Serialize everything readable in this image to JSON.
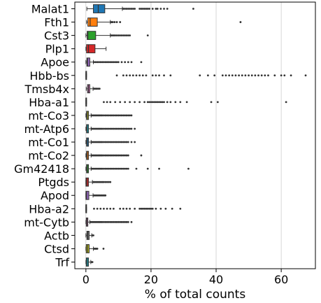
{
  "chart_data": {
    "type": "boxplot",
    "title": "",
    "xlabel": "% of total counts",
    "ylabel": "",
    "xlim": [
      -3.4,
      70.5
    ],
    "xticks": [
      0,
      20,
      40,
      60
    ],
    "grid": "vertical",
    "orientation": "horizontal",
    "series": [
      {
        "name": "Malat1",
        "color": "#1f77b4",
        "q1": 2.3,
        "median": 3.8,
        "q3": 5.8,
        "whisker_low": 0.3,
        "whisker_high": 11.2,
        "outliers": [
          11.5,
          12.0,
          12.5,
          13.0,
          13.5,
          14.0,
          14.5,
          15.0,
          16.5,
          17.0,
          17.5,
          18.0,
          18.5,
          19.0,
          19.5,
          20.5,
          21.5,
          22.0,
          23.0,
          24.0,
          25.0,
          33.0
        ]
      },
      {
        "name": "Fth1",
        "color": "#ff7f0e",
        "q1": 0.6,
        "median": 1.3,
        "q3": 3.5,
        "whisker_low": 0.2,
        "whisker_high": 7.5,
        "outliers": [
          7.8,
          8.2,
          8.8,
          9.5,
          10.5,
          47.5
        ]
      },
      {
        "name": "Cst3",
        "color": "#2ca02c",
        "q1": 0.4,
        "median": 0.6,
        "q3": 3.0,
        "whisker_low": 0.0,
        "whisker_high": 7.5,
        "outliers": [
          7.8,
          8.2,
          8.6,
          9.0,
          9.5,
          10.0,
          10.5,
          11.0,
          11.5,
          12.0,
          12.5,
          13.0,
          13.5,
          19.0
        ]
      },
      {
        "name": "Plp1",
        "color": "#d62728",
        "q1": 0.2,
        "median": 0.8,
        "q3": 2.8,
        "whisker_low": 0.0,
        "whisker_high": 6.2,
        "outliers": []
      },
      {
        "name": "Apoe",
        "color": "#9467bd",
        "q1": 0.3,
        "median": 0.5,
        "q3": 1.2,
        "whisker_low": 0.0,
        "whisker_high": 2.3,
        "outliers": [
          2.5,
          3.0,
          3.5,
          4.0,
          4.5,
          5.0,
          5.5,
          6.0,
          6.5,
          7.0,
          7.5,
          8.0,
          8.5,
          9.0,
          9.5,
          10.0,
          11.0,
          12.0,
          13.0,
          14.0,
          17.0
        ]
      },
      {
        "name": "Hbb-bs",
        "color": "#8c564b",
        "q1": 0.0,
        "median": 0.0,
        "q3": 0.1,
        "whisker_low": 0.0,
        "whisker_high": 0.2,
        "outliers": [
          9.5,
          11.5,
          12.5,
          13.5,
          14.5,
          15.5,
          16.5,
          17.5,
          18.5,
          20.5,
          21.5,
          22.5,
          24.0,
          26.0,
          35.0,
          37.5,
          39.5,
          42.0,
          43.0,
          44.0,
          45.0,
          46.0,
          47.0,
          48.0,
          49.0,
          50.0,
          51.0,
          52.0,
          53.0,
          54.0,
          55.0,
          56.0,
          58.0,
          60.0,
          61.0,
          63.0,
          67.5
        ]
      },
      {
        "name": "Tmsb4x",
        "color": "#e377c2",
        "q1": 0.5,
        "median": 0.8,
        "q3": 1.2,
        "whisker_low": 0.1,
        "whisker_high": 2.2,
        "outliers": [
          2.5,
          2.8,
          3.1,
          3.4,
          3.8,
          4.2
        ]
      },
      {
        "name": "Hba-a1",
        "color": "#7f7f7f",
        "q1": 0.0,
        "median": 0.0,
        "q3": 0.1,
        "whisker_low": 0.0,
        "whisker_high": 0.2,
        "outliers": [
          5.5,
          6.5,
          7.5,
          9.0,
          10.5,
          12.0,
          13.5,
          15.0,
          16.5,
          18.0,
          19.0,
          19.5,
          20.0,
          20.5,
          21.0,
          21.5,
          22.0,
          22.5,
          23.0,
          23.5,
          24.0,
          25.0,
          26.0,
          27.5,
          29.0,
          31.0,
          38.5,
          40.5,
          61.5
        ]
      },
      {
        "name": "mt-Co3",
        "color": "#bcbd22",
        "q1": 0.2,
        "median": 0.4,
        "q3": 0.8,
        "whisker_low": 0.0,
        "whisker_high": 1.6,
        "outliers": [
          1.8,
          2.2,
          2.6,
          3.0,
          3.4,
          3.8,
          4.2,
          4.6,
          5.0,
          5.5,
          6.0,
          6.5,
          7.0,
          7.5,
          8.0,
          8.5,
          9.0,
          9.5,
          10.0,
          10.5,
          11.0,
          11.5,
          12.0,
          12.5,
          13.0,
          13.5,
          14.0
        ]
      },
      {
        "name": "mt-Atp6",
        "color": "#17becf",
        "q1": 0.2,
        "median": 0.4,
        "q3": 0.8,
        "whisker_low": 0.0,
        "whisker_high": 1.6,
        "outliers": [
          1.8,
          2.2,
          2.6,
          3.0,
          3.4,
          3.8,
          4.2,
          4.6,
          5.0,
          5.5,
          6.0,
          6.5,
          7.0,
          7.5,
          8.0,
          8.5,
          9.0,
          9.5,
          10.0,
          10.5,
          11.0,
          11.5,
          12.0,
          12.5,
          13.0,
          13.5,
          14.0,
          15.0
        ]
      },
      {
        "name": "mt-Co1",
        "color": "#1f77b4",
        "q1": 0.2,
        "median": 0.4,
        "q3": 0.8,
        "whisker_low": 0.0,
        "whisker_high": 1.6,
        "outliers": [
          1.8,
          2.2,
          2.6,
          3.0,
          3.4,
          3.8,
          4.2,
          4.6,
          5.0,
          5.5,
          6.0,
          6.5,
          7.0,
          7.5,
          8.0,
          8.5,
          9.0,
          9.5,
          10.0,
          10.5,
          11.0,
          11.5,
          12.0,
          12.5,
          13.0,
          14.0,
          15.0
        ]
      },
      {
        "name": "mt-Co2",
        "color": "#ff7f0e",
        "q1": 0.2,
        "median": 0.4,
        "q3": 0.8,
        "whisker_low": 0.0,
        "whisker_high": 1.6,
        "outliers": [
          1.8,
          2.2,
          2.6,
          3.0,
          3.4,
          3.8,
          4.2,
          4.6,
          5.0,
          5.5,
          6.0,
          6.5,
          7.0,
          7.5,
          8.0,
          8.5,
          9.0,
          9.5,
          10.0,
          10.5,
          11.0,
          11.5,
          12.0,
          12.5,
          13.0,
          17.0
        ]
      },
      {
        "name": "Gm42418",
        "color": "#2ca02c",
        "q1": 0.2,
        "median": 0.4,
        "q3": 0.8,
        "whisker_low": 0.0,
        "whisker_high": 1.6,
        "outliers": [
          1.8,
          2.2,
          2.6,
          3.0,
          3.4,
          3.8,
          4.2,
          4.6,
          5.0,
          5.5,
          6.0,
          6.5,
          7.0,
          7.5,
          8.0,
          8.5,
          9.0,
          9.5,
          10.0,
          10.5,
          11.0,
          11.5,
          12.0,
          12.5,
          13.0,
          15.5,
          19.0,
          22.5,
          31.5
        ]
      },
      {
        "name": "Ptgds",
        "color": "#d62728",
        "q1": 0.0,
        "median": 0.3,
        "q3": 0.8,
        "whisker_low": 0.0,
        "whisker_high": 2.0,
        "outliers": [
          2.3,
          2.7,
          3.1,
          3.5,
          3.9,
          4.3,
          4.7,
          5.1,
          5.5,
          6.0,
          6.5,
          7.0,
          7.5
        ]
      },
      {
        "name": "Apod",
        "color": "#9467bd",
        "q1": 0.0,
        "median": 0.2,
        "q3": 0.9,
        "whisker_low": 0.0,
        "whisker_high": 2.2,
        "outliers": [
          2.5,
          2.8,
          3.1,
          3.4,
          3.7,
          4.0,
          4.3,
          4.6,
          4.9,
          5.2,
          5.5,
          5.8,
          6.0
        ]
      },
      {
        "name": "Hba-a2",
        "color": "#8c564b",
        "q1": 0.0,
        "median": 0.0,
        "q3": 0.1,
        "whisker_low": 0.0,
        "whisker_high": 0.2,
        "outliers": [
          2.5,
          3.5,
          4.5,
          5.5,
          6.5,
          7.5,
          8.5,
          10.5,
          11.5,
          12.5,
          13.5,
          15.0,
          16.5,
          17.0,
          17.5,
          18.0,
          18.5,
          19.0,
          19.5,
          20.0,
          20.5,
          21.5,
          23.0,
          24.5,
          26.5,
          29.0
        ]
      },
      {
        "name": "mt-Cytb",
        "color": "#e377c2",
        "q1": 0.1,
        "median": 0.3,
        "q3": 0.6,
        "whisker_low": 0.0,
        "whisker_high": 1.2,
        "outliers": [
          1.4,
          1.8,
          2.2,
          2.6,
          3.0,
          3.4,
          3.8,
          4.2,
          4.6,
          5.0,
          5.5,
          6.0,
          6.5,
          7.0,
          7.5,
          8.0,
          8.5,
          9.0,
          9.5,
          10.0,
          10.5,
          11.0,
          11.5,
          12.0,
          12.5,
          13.0,
          14.0
        ]
      },
      {
        "name": "Actb",
        "color": "#7f7f7f",
        "q1": 0.3,
        "median": 0.6,
        "q3": 1.0,
        "whisker_low": 0.0,
        "whisker_high": 1.8,
        "outliers": [
          2.0,
          2.3
        ]
      },
      {
        "name": "Ctsd",
        "color": "#bcbd22",
        "q1": 0.1,
        "median": 0.5,
        "q3": 1.0,
        "whisker_low": 0.0,
        "whisker_high": 2.3,
        "outliers": [
          2.6,
          2.9,
          3.2,
          3.5,
          5.4
        ]
      },
      {
        "name": "Trf",
        "color": "#17becf",
        "q1": 0.1,
        "median": 0.4,
        "q3": 0.8,
        "whisker_low": 0.0,
        "whisker_high": 1.5,
        "outliers": [
          1.7,
          2.0
        ]
      }
    ]
  }
}
